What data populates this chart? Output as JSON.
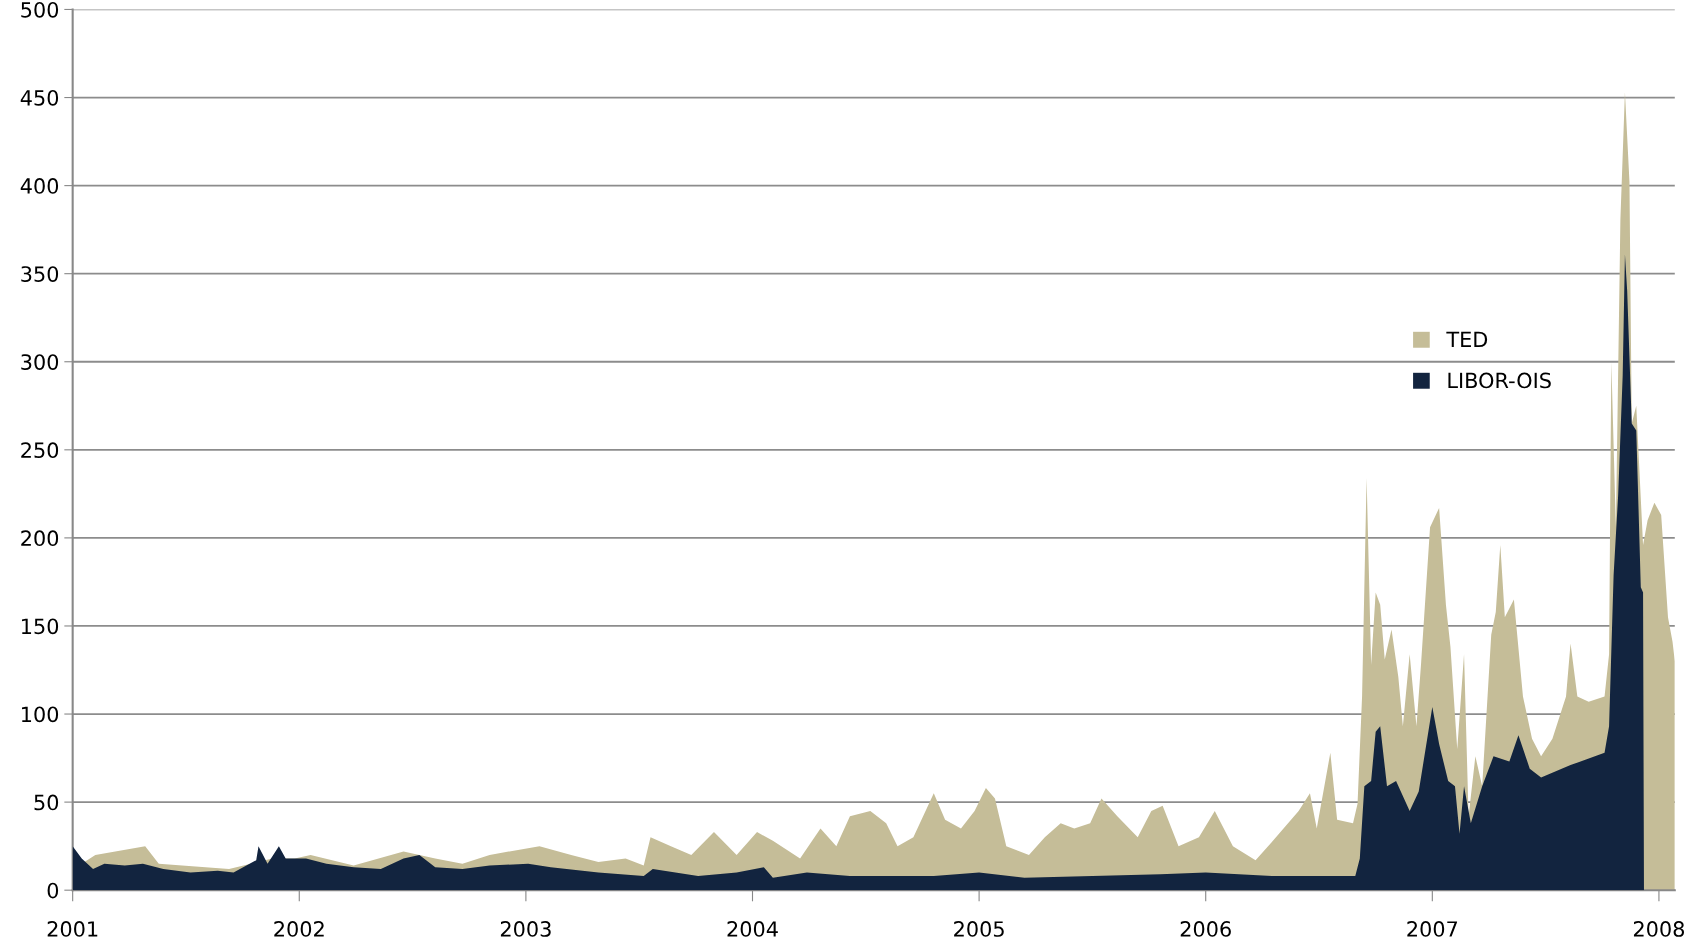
{
  "chart_data": {
    "type": "area",
    "xlim": [
      2001,
      2008.07
    ],
    "xticks": [
      2001,
      2002,
      2003,
      2004,
      2005,
      2006,
      2007,
      2008
    ],
    "ylim": [
      0,
      500
    ],
    "yticks": [
      0,
      50,
      100,
      150,
      200,
      250,
      300,
      350,
      400,
      450,
      500
    ],
    "grid": "y",
    "legend": "center right",
    "series": [
      {
        "name": "TED",
        "color": "#c5bd98",
        "x": [
          2001.0,
          2001.04,
          2001.1,
          2001.32,
          2001.38,
          2001.69,
          2001.88,
          2001.98,
          2002.05,
          2002.24,
          2002.46,
          2002.6,
          2002.72,
          2002.84,
          2003.06,
          2003.2,
          2003.32,
          2003.44,
          2003.52,
          2003.55,
          2003.64,
          2003.73,
          2003.83,
          2003.93,
          2004.02,
          2004.09,
          2004.21,
          2004.3,
          2004.37,
          2004.43,
          2004.52,
          2004.59,
          2004.64,
          2004.71,
          2004.8,
          2004.85,
          2004.92,
          2004.98,
          2005.03,
          2005.07,
          2005.12,
          2005.22,
          2005.29,
          2005.36,
          2005.42,
          2005.49,
          2005.54,
          2005.61,
          2005.7,
          2005.76,
          2005.81,
          2005.88,
          2005.97,
          2006.04,
          2006.12,
          2006.22,
          2006.29,
          2006.41,
          2006.46,
          2006.49,
          2006.55,
          2006.58,
          2006.65,
          2006.67,
          2006.69,
          2006.71,
          2006.73,
          2006.75,
          2006.77,
          2006.79,
          2006.82,
          2006.85,
          2006.87,
          2006.9,
          2006.93,
          2006.95,
          2006.99,
          2007.03,
          2007.06,
          2007.08,
          2007.11,
          2007.14,
          2007.16,
          2007.19,
          2007.22,
          2007.26,
          2007.28,
          2007.3,
          2007.32,
          2007.36,
          2007.4,
          2007.44,
          2007.48,
          2007.53,
          2007.59,
          2007.61,
          2007.64,
          2007.69,
          2007.76,
          2007.78,
          2007.79,
          2007.81,
          2007.83,
          2007.85,
          2007.87,
          2007.88,
          2007.9,
          2007.93,
          2007.95,
          2007.98,
          2008.01,
          2008.04,
          2008.06,
          2008.07
        ],
        "values": [
          22,
          15,
          20,
          25,
          15,
          12,
          18,
          18,
          20,
          14,
          22,
          18,
          15,
          20,
          25,
          20,
          16,
          18,
          14,
          30,
          25,
          20,
          33,
          20,
          33,
          28,
          18,
          35,
          25,
          42,
          45,
          38,
          25,
          30,
          55,
          40,
          35,
          45,
          58,
          52,
          25,
          20,
          30,
          38,
          35,
          38,
          52,
          42,
          30,
          45,
          48,
          25,
          30,
          45,
          25,
          17,
          27,
          45,
          55,
          35,
          78,
          40,
          38,
          49,
          110,
          234,
          128,
          169,
          162,
          131,
          148,
          121,
          93,
          134,
          93,
          128,
          206,
          217,
          162,
          138,
          80,
          134,
          42,
          76,
          59,
          145,
          158,
          196,
          155,
          165,
          110,
          86,
          76,
          86,
          110,
          140,
          110,
          107,
          110,
          134,
          300,
          206,
          381,
          453,
          402,
          265,
          275,
          196,
          210,
          220,
          213,
          155,
          141,
          130
        ]
      },
      {
        "name": "LIBOR-OIS",
        "color": "#12243f",
        "x": [
          2001.0,
          2001.04,
          2001.09,
          2001.14,
          2001.23,
          2001.31,
          2001.4,
          2001.52,
          2001.64,
          2001.71,
          2001.81,
          2001.82,
          2001.86,
          2001.91,
          2001.94,
          2002.03,
          2002.12,
          2002.24,
          2002.36,
          2002.46,
          2002.53,
          2002.6,
          2002.72,
          2002.84,
          2003.01,
          2003.11,
          2003.32,
          2003.52,
          2003.56,
          2003.76,
          2003.93,
          2004.05,
          2004.09,
          2004.24,
          2004.43,
          2004.8,
          2005.0,
          2005.2,
          2005.5,
          2005.8,
          2006.0,
          2006.3,
          2006.6,
          2006.66,
          2006.68,
          2006.7,
          2006.73,
          2006.75,
          2006.77,
          2006.8,
          2006.84,
          2006.9,
          2006.94,
          2006.97,
          2007.0,
          2007.03,
          2007.07,
          2007.1,
          2007.12,
          2007.14,
          2007.17,
          2007.22,
          2007.27,
          2007.34,
          2007.38,
          2007.43,
          2007.48,
          2007.61,
          2007.76,
          2007.78,
          2007.8,
          2007.82,
          2007.84,
          2007.85,
          2007.86,
          2007.88,
          2007.9,
          2007.92,
          2007.93,
          2007.934
        ],
        "values": [
          25,
          18,
          12,
          15,
          14,
          15,
          12,
          10,
          11,
          10,
          17,
          25,
          15,
          25,
          18,
          18,
          15,
          13,
          12,
          18,
          20,
          13,
          12,
          14,
          15,
          13,
          10,
          8,
          12,
          8,
          10,
          13,
          7,
          10,
          8,
          8,
          10,
          7,
          8,
          9,
          10,
          8,
          8,
          8,
          18,
          59,
          62,
          90,
          93,
          59,
          62,
          45,
          56,
          80,
          104,
          83,
          62,
          59,
          32,
          59,
          38,
          59,
          76,
          73,
          88,
          69,
          64,
          71,
          78,
          93,
          179,
          224,
          292,
          361,
          340,
          265,
          261,
          172,
          169,
          0
        ]
      }
    ]
  }
}
